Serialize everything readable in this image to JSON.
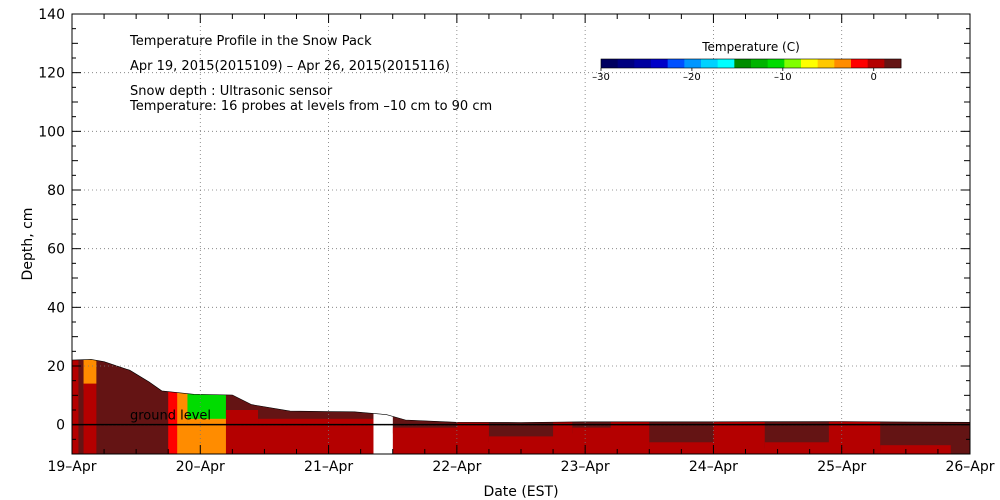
{
  "chart_data": {
    "type": "heatmap",
    "title": "Temperature Profile in the Snow Pack",
    "subtitle": "Apr 19, 2015(2015109) – Apr 26, 2015(2015116)",
    "annotations": [
      "Snow depth : Ultrasonic sensor",
      "Temperature: 16 probes at levels from –10 cm to 90 cm"
    ],
    "ground_label": "ground level",
    "xlabel": "Date (EST)",
    "ylabel": "Depth, cm",
    "ylim": [
      -10,
      140
    ],
    "yticks": [
      0,
      20,
      40,
      60,
      80,
      100,
      120,
      140
    ],
    "x_tick_labels": [
      "19–Apr",
      "20–Apr",
      "21–Apr",
      "22–Apr",
      "23–Apr",
      "24–Apr",
      "25–Apr",
      "26–Apr"
    ],
    "xlim_days": [
      0,
      7
    ],
    "grid": true,
    "colorbar": {
      "title": "Temperature (C)",
      "range": [
        -30,
        3
      ],
      "tick_values": [
        -30,
        -20,
        -10,
        0
      ],
      "tick_labels": [
        "–30",
        "–20",
        "–10",
        "0"
      ],
      "placement": "top-right",
      "colors": [
        "#000060",
        "#000080",
        "#0000a0",
        "#0000c8",
        "#0050ff",
        "#0096ff",
        "#00d2ff",
        "#00ffff",
        "#008c00",
        "#00b400",
        "#00dc00",
        "#80ff00",
        "#ffff00",
        "#ffc800",
        "#ff8c00",
        "#ff0000",
        "#b40000",
        "#641414"
      ]
    },
    "snow_depth": {
      "x_days": [
        0,
        0.15,
        0.25,
        0.45,
        0.6,
        0.7,
        0.95,
        1.25,
        1.4,
        1.7,
        2.0,
        2.2,
        2.45,
        2.6,
        3.0,
        3.5,
        4.0,
        5.0,
        6.0,
        6.6,
        7.0
      ],
      "depth_cm": [
        22,
        22,
        21,
        18,
        14,
        11,
        10,
        10,
        7,
        5,
        5,
        5,
        4,
        2,
        1,
        0.7,
        0.7,
        0.5,
        0.5,
        0.3,
        0.3
      ]
    },
    "temperature_regions": [
      {
        "x0": 0,
        "x1": 0.05,
        "y0": -10,
        "y1": 22,
        "temp": 1
      },
      {
        "x0": 0.05,
        "x1": 0.09,
        "y0": -10,
        "y1": 22,
        "temp": 1.5
      },
      {
        "x0": 0.09,
        "x1": 0.13,
        "y0": 12,
        "y1": 22,
        "temp": -3
      },
      {
        "x0": 0.13,
        "x1": 0.19,
        "y0": 12,
        "y1": 22,
        "temp": -4
      },
      {
        "x0": 0.09,
        "x1": 0.19,
        "y0": -10,
        "y1": 12,
        "temp": 1
      },
      {
        "x0": 0.19,
        "x1": 0.22,
        "y0": -10,
        "y1": 22,
        "temp": 1.5
      },
      {
        "x0": 0.22,
        "x1": 0.75,
        "y0": 3,
        "y1": 22,
        "temp": 2
      },
      {
        "x0": 0.22,
        "x1": 0.75,
        "y0": -10,
        "y1": 3,
        "temp": 1.5
      },
      {
        "x0": 0.75,
        "x1": 0.82,
        "y0": -10,
        "y1": 10,
        "temp": -2
      },
      {
        "x0": 0.82,
        "x1": 0.9,
        "y0": -10,
        "y1": 10,
        "temp": -4
      },
      {
        "x0": 0.9,
        "x1": 1.2,
        "y0": 0,
        "y1": 10,
        "temp": -10
      },
      {
        "x0": 0.9,
        "x1": 1.2,
        "y0": -10,
        "y1": 0,
        "temp": -3
      },
      {
        "x0": 1.2,
        "x1": 1.45,
        "y0": 3,
        "y1": 10,
        "temp": 2
      },
      {
        "x0": 1.2,
        "x1": 1.45,
        "y0": -10,
        "y1": 3,
        "temp": 1
      },
      {
        "x0": 1.45,
        "x1": 2.35,
        "y0": 0,
        "y1": 6,
        "temp": 2
      },
      {
        "x0": 1.45,
        "x1": 2.35,
        "y0": -10,
        "y1": 0,
        "temp": 1
      },
      {
        "x0": 2.5,
        "x1": 3.0,
        "y0": -3,
        "y1": 1,
        "temp": 2
      },
      {
        "x0": 2.5,
        "x1": 3.0,
        "y0": -10,
        "y1": -3,
        "temp": 1
      },
      {
        "x0": 3.0,
        "x1": 3.25,
        "y0": -10,
        "y1": 1,
        "temp": 1
      },
      {
        "x0": 3.25,
        "x1": 3.75,
        "y0": -6,
        "y1": 1,
        "temp": 2
      },
      {
        "x0": 3.25,
        "x1": 3.75,
        "y0": -10,
        "y1": -6,
        "temp": 1
      },
      {
        "x0": 3.75,
        "x1": 3.9,
        "y0": -10,
        "y1": 1,
        "temp": 1
      },
      {
        "x0": 3.9,
        "x1": 4.2,
        "y0": -3,
        "y1": 1,
        "temp": 2
      },
      {
        "x0": 3.9,
        "x1": 4.2,
        "y0": -10,
        "y1": -3,
        "temp": 1
      },
      {
        "x0": 4.2,
        "x1": 4.5,
        "y0": -10,
        "y1": 1,
        "temp": 1
      },
      {
        "x0": 4.5,
        "x1": 5.0,
        "y0": -8,
        "y1": 1,
        "temp": 2
      },
      {
        "x0": 4.5,
        "x1": 5.0,
        "y0": -10,
        "y1": -8,
        "temp": 1
      },
      {
        "x0": 5.0,
        "x1": 5.4,
        "y0": -10,
        "y1": 1,
        "temp": 1
      },
      {
        "x0": 5.4,
        "x1": 5.9,
        "y0": -8,
        "y1": 1,
        "temp": 2
      },
      {
        "x0": 5.4,
        "x1": 5.9,
        "y0": -10,
        "y1": -8,
        "temp": 1
      },
      {
        "x0": 5.9,
        "x1": 6.3,
        "y0": -10,
        "y1": 1,
        "temp": 1
      },
      {
        "x0": 6.3,
        "x1": 6.85,
        "y0": -9,
        "y1": 1,
        "temp": 2
      },
      {
        "x0": 6.3,
        "x1": 6.85,
        "y0": -10,
        "y1": -9,
        "temp": 1
      },
      {
        "x0": 6.85,
        "x1": 7.0,
        "y0": -10,
        "y1": 1,
        "temp": 1.5
      }
    ],
    "missing_intervals": [
      [
        2.35,
        2.5
      ]
    ]
  }
}
